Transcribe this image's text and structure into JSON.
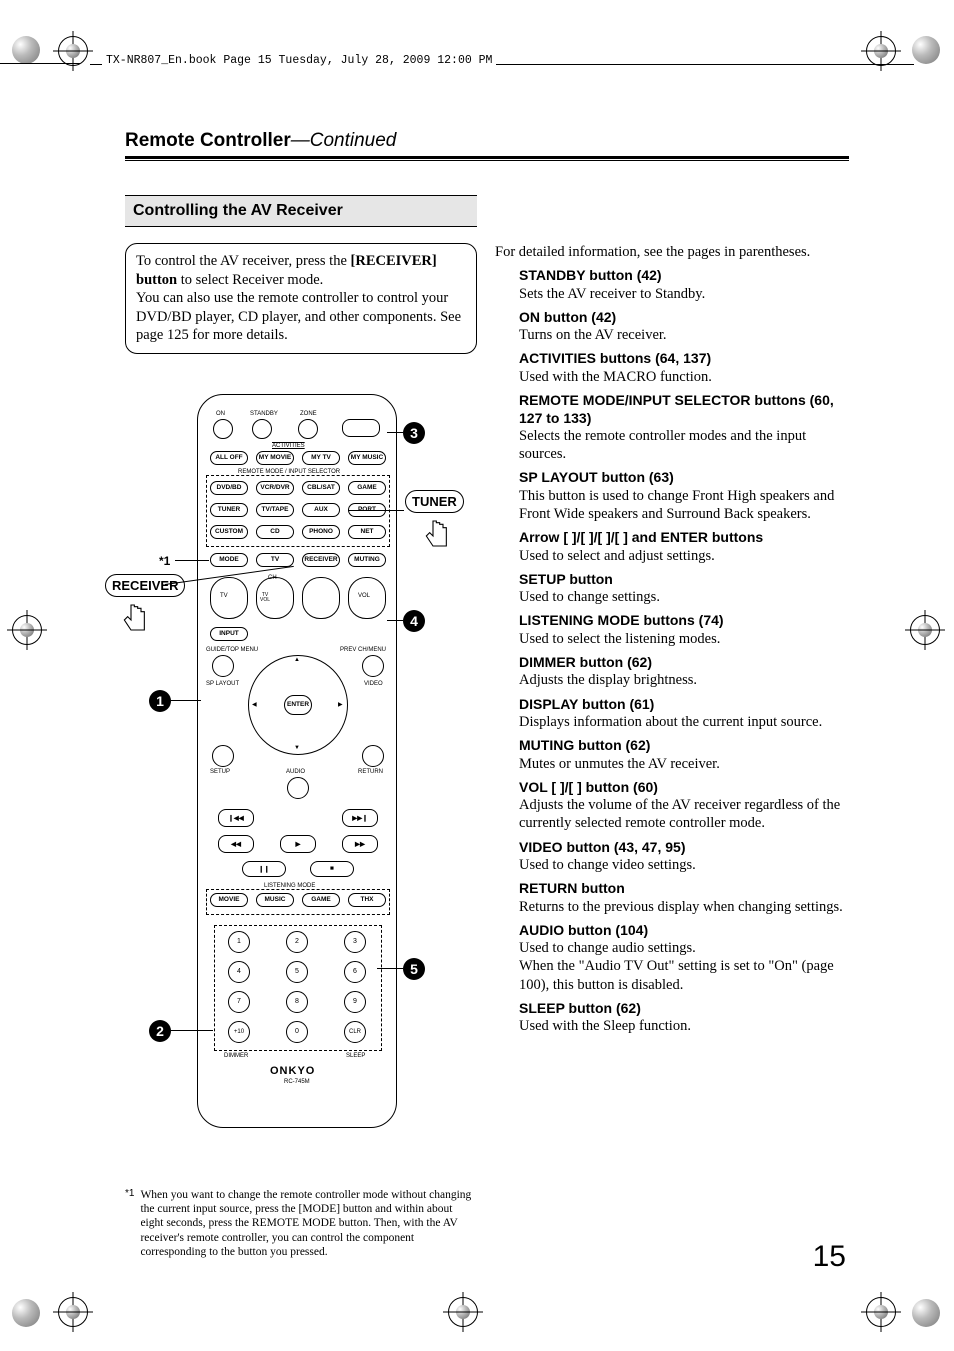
{
  "header": {
    "file_line": "TX-NR807_En.book  Page 15  Tuesday, July 28, 2009  12:00 PM"
  },
  "chapter_title_bold": "Remote Controller",
  "chapter_title_cont": "—Continued",
  "section_title": "Controlling the AV Receiver",
  "intro": {
    "line1a": "To control the AV receiver, press the ",
    "line1b": "[RECEIVER] button",
    "line1c": " to select Receiver mode.",
    "line2": "You can also use the remote controller to control your DVD/BD player, CD player, and other components. See page 125 for more details."
  },
  "callouts": {
    "receiver": "RECEIVER",
    "tuner": "TUNER",
    "star1": "*1",
    "n1": "1",
    "n2": "2",
    "n3": "3",
    "n4": "4",
    "n5": "5"
  },
  "remote_labels": {
    "on": "ON",
    "standby": "STANDBY",
    "zone": "ZONE",
    "display": "DISPLAY",
    "activities": "ACTIVITIES",
    "alloff": "ALL OFF",
    "mymovie": "MY MOVIE",
    "mytv": "MY TV",
    "mymusic": "MY MUSIC",
    "selector_title": "REMOTE MODE / INPUT SELECTOR",
    "dvdbd": "DVD/BD",
    "vcrdvr": "VCR/DVR",
    "cblsat": "CBL/SAT",
    "game": "GAME",
    "tuner": "TUNER",
    "tvtape": "TV/TAPE",
    "aux": "AUX",
    "port": "PORT",
    "custom": "CUSTOM",
    "cd": "CD",
    "phono": "PHONO",
    "net": "NET",
    "mode": "MODE",
    "tv": "TV",
    "receiver": "RECEIVER",
    "muting": "MUTING",
    "ch": "CH",
    "tvvol": "TV\nVOL",
    "vol": "VOL",
    "input": "INPUT",
    "guide": "GUIDE/TOP MENU",
    "prev": "PREV CH/MENU",
    "splayout": "SP LAYOUT",
    "video": "VIDEO",
    "enter": "ENTER",
    "setup": "SETUP",
    "audio": "AUDIO",
    "return": "RETURN",
    "listening": "LISTENING MODE",
    "movie": "MOVIE",
    "music": "MUSIC",
    "gamelm": "GAME",
    "thx": "THX",
    "dimmer": "DIMMER",
    "sleep": "SLEEP",
    "clr": "CLR",
    "plus10": "+10",
    "brand": "ONKYO",
    "model": "RC-745M",
    "n0": "0",
    "n1": "1",
    "n2": "2",
    "n3": "3",
    "n4": "4",
    "n5": "5",
    "n6": "6",
    "n7": "7",
    "n8": "8",
    "n9": "9"
  },
  "right_lead": "For detailed information, see the pages in parentheses.",
  "items": [
    {
      "t": "STANDBY button (42)",
      "d": "Sets the AV receiver to Standby."
    },
    {
      "t": "ON button (42)",
      "d": "Turns on the AV receiver."
    },
    {
      "t": "ACTIVITIES buttons (64, 137)",
      "d": "Used with the MACRO function."
    },
    {
      "t": "REMOTE MODE/INPUT SELECTOR buttons (60, 127 to 133)",
      "d": "Selects the remote controller modes and the input sources."
    },
    {
      "t": "SP LAYOUT button (63)",
      "d": "This button is used to change Front High speakers and Front Wide speakers and Surround Back speakers."
    },
    {
      "t": "Arrow [  ]/[  ]/[  ]/[  ] and ENTER buttons",
      "d": "Used to select and adjust settings."
    },
    {
      "t": "SETUP button",
      "d": "Used to change settings."
    },
    {
      "t": "LISTENING MODE buttons (74)",
      "d": "Used to select the listening modes."
    },
    {
      "t": "DIMMER button (62)",
      "d": "Adjusts the display brightness."
    },
    {
      "t": "DISPLAY button (61)",
      "d": "Displays information about the current input source."
    },
    {
      "t": "MUTING button (62)",
      "d": "Mutes or unmutes the AV receiver."
    },
    {
      "t": "VOL [  ]/[  ] button (60)",
      "d": "Adjusts the volume of the AV receiver regardless of the currently selected remote controller mode."
    },
    {
      "t": "VIDEO button (43, 47, 95)",
      "d": "Used to change video settings."
    },
    {
      "t": "RETURN button",
      "d": "Returns to the previous display when changing settings."
    },
    {
      "t": "AUDIO button (104)",
      "d": "Used to change audio settings.\nWhen the \"Audio TV Out\" setting is set to \"On\" (page 100), this button is disabled."
    },
    {
      "t": "SLEEP button (62)",
      "d": "Used with the Sleep function."
    }
  ],
  "footnote": {
    "mark": "*1",
    "text": "When you want to change the remote controller mode without changing the current input source, press the [MODE] button and within about eight seconds, press the REMOTE MODE button. Then, with the AV receiver's remote controller, you can control the component corresponding to the button you pressed."
  },
  "page_number": "15"
}
